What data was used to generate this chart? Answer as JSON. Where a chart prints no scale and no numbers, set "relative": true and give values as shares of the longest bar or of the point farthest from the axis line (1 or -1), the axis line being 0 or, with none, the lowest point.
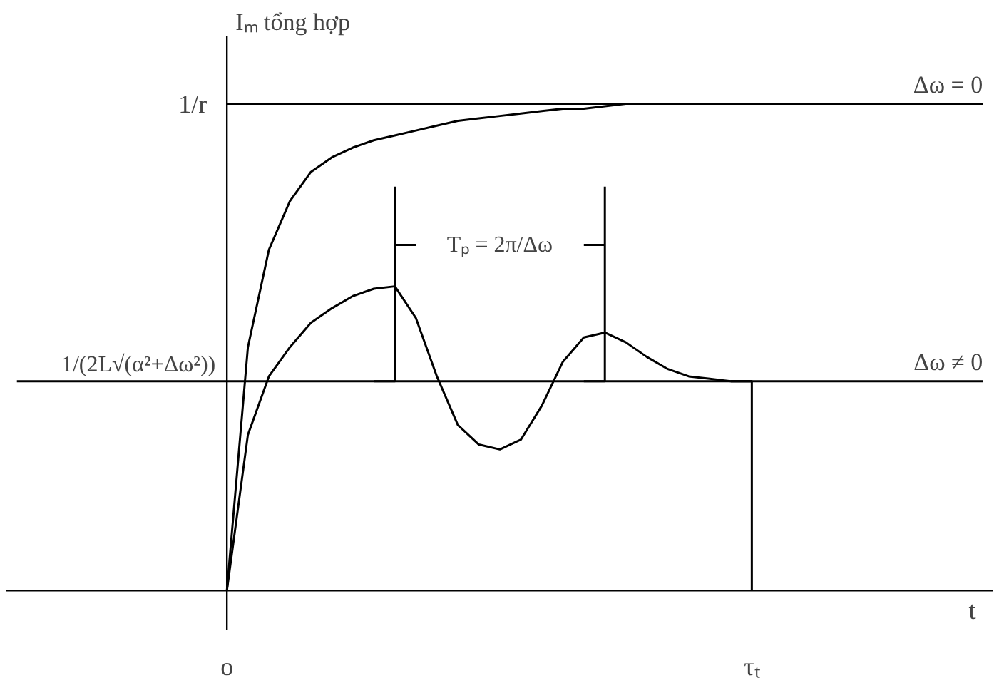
{
  "chart_data": {
    "type": "line",
    "relative": true,
    "xlabel": "t",
    "ylabel": "Iₘ tổng hợp",
    "categories": [
      null,
      null,
      null,
      null,
      null,
      null,
      null,
      null,
      null,
      null,
      "o",
      null,
      null,
      null,
      null,
      null,
      null,
      null,
      null,
      null,
      null,
      null,
      null,
      null,
      null,
      null,
      null,
      null,
      null,
      null,
      null,
      null,
      null,
      null,
      null,
      "τₜ",
      null,
      null,
      null,
      null,
      null,
      null,
      null,
      null,
      null,
      null,
      null
    ],
    "annotations": [
      "1/r",
      {
        "text": "1/(2L√(α²+Δω²))",
        "y": 0.43
      },
      "Tₚ = 2π/Δω"
    ],
    "series": [
      {
        "color": "#000000",
        "values": [
          null,
          null,
          null,
          null,
          null,
          null,
          null,
          null,
          null,
          null,
          0,
          0.5,
          0.7,
          0.8,
          0.86,
          0.89,
          0.91,
          0.925,
          0.935,
          0.945,
          0.955,
          0.965,
          0.97,
          0.975,
          0.98,
          0.985,
          0.99,
          0.99,
          0.995,
          1,
          null,
          null,
          null,
          null,
          null,
          null,
          null,
          null,
          null,
          null,
          null,
          null,
          null,
          null,
          null,
          null,
          null
        ]
      },
      {
        "color": "#000000",
        "values": [
          null,
          null,
          null,
          null,
          null,
          null,
          null,
          null,
          null,
          null,
          0,
          0.32,
          0.44,
          0.5,
          0.55,
          0.58,
          0.605,
          0.62,
          0.625,
          0.56,
          0.44,
          0.34,
          0.3,
          0.29,
          0.31,
          0.38,
          0.47,
          0.52,
          0.53,
          0.51,
          0.48,
          0.455,
          0.44,
          0.435,
          0.43,
          0.43,
          null,
          null,
          null,
          null,
          null,
          null,
          null,
          null,
          null,
          null,
          null
        ]
      },
      {
        "name": "Δω = 0",
        "color": "#000000",
        "values": [
          null,
          null,
          null,
          null,
          null,
          null,
          null,
          null,
          null,
          null,
          1,
          1,
          1,
          1,
          1,
          1,
          1,
          1,
          1,
          1,
          1,
          1,
          1,
          1,
          1,
          1,
          1,
          1,
          1,
          1,
          1,
          1,
          1,
          1,
          1,
          1,
          1,
          1,
          1,
          1,
          1,
          1,
          1,
          1,
          1,
          1,
          1
        ]
      },
      {
        "name": "Δω ≠ 0",
        "color": "#000000",
        "values": [
          0.43,
          0.43,
          0.43,
          0.43,
          0.43,
          0.43,
          0.43,
          0.43,
          0.43,
          0.43,
          0.43,
          0.43,
          0.43,
          0.43,
          0.43,
          0.43,
          0.43,
          0.43,
          0.43,
          0.43,
          0.43,
          0.43,
          0.43,
          0.43,
          0.43,
          0.43,
          0.43,
          0.43,
          0.43,
          0.43,
          0.43,
          0.43,
          0.43,
          0.43,
          0.43,
          0.43,
          0.43,
          0.43,
          0.43,
          0.43,
          0.43,
          0.43,
          0.43,
          0.43,
          0.43,
          0.43,
          0.43
        ]
      },
      {
        "type": "step",
        "color": "#000000",
        "values": [
          null,
          null,
          null,
          null,
          null,
          null,
          null,
          null,
          null,
          null,
          null,
          null,
          null,
          null,
          null,
          null,
          null,
          null,
          null,
          null,
          null,
          null,
          null,
          null,
          null,
          null,
          null,
          null,
          null,
          null,
          null,
          null,
          null,
          null,
          0.43,
          0,
          null,
          null,
          null,
          null,
          null,
          null,
          null,
          null,
          null,
          null,
          null
        ]
      },
      {
        "type": "step",
        "color": "#000000",
        "values": [
          null,
          null,
          null,
          null,
          null,
          null,
          null,
          null,
          null,
          null,
          null,
          null,
          null,
          null,
          null,
          null,
          null,
          0.43,
          0.83,
          null,
          null,
          null,
          null,
          null,
          null,
          null,
          null,
          null,
          null,
          null,
          null,
          null,
          null,
          null,
          null,
          null,
          null,
          null,
          null,
          null,
          null,
          null,
          null,
          null,
          null,
          null,
          null
        ]
      },
      {
        "type": "step",
        "color": "#000000",
        "values": [
          null,
          null,
          null,
          null,
          null,
          null,
          null,
          null,
          null,
          null,
          null,
          null,
          null,
          null,
          null,
          null,
          null,
          null,
          null,
          null,
          null,
          null,
          null,
          null,
          null,
          null,
          null,
          0.43,
          0.83,
          null,
          null,
          null,
          null,
          null,
          null,
          null,
          null,
          null,
          null,
          null,
          null,
          null,
          null,
          null,
          null,
          null,
          null
        ]
      },
      {
        "color": "#000000",
        "values": [
          null,
          null,
          null,
          null,
          null,
          null,
          null,
          null,
          null,
          null,
          null,
          null,
          null,
          null,
          null,
          null,
          null,
          null,
          0.71,
          0.71,
          null,
          null,
          null,
          null,
          null,
          null,
          null,
          0.71,
          0.71,
          null,
          null,
          null,
          null,
          null,
          null,
          null,
          null,
          null,
          null,
          null,
          null,
          null,
          null,
          null,
          null,
          null,
          null
        ]
      }
    ],
    "marker": "none",
    "line_style": "solid"
  }
}
